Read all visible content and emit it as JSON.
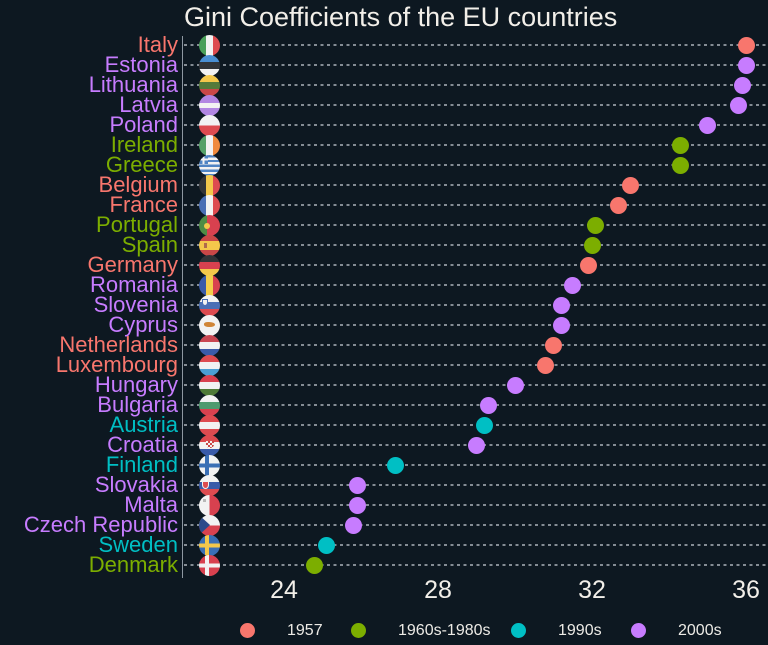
{
  "title": "Gini Coefficients of the EU countries",
  "colors": {
    "background": "#0d1821",
    "title_text": "#f2efe9",
    "tick_text": "#f2efe9",
    "legend_text": "#eceae5",
    "gridline": "#cdd4da",
    "axis_line": "#b9c3cd",
    "groups": {
      "1957": "#F8766D",
      "1960s-1980s": "#7CAE00",
      "1990s": "#00BFC4",
      "2000s": "#C77CFF"
    }
  },
  "legend": {
    "items": [
      {
        "label": "1957",
        "group": "1957",
        "color": "#F8766D"
      },
      {
        "label": "1960s-1980s",
        "group": "1960s-1980s",
        "color": "#7CAE00"
      },
      {
        "label": "1990s",
        "group": "1990s",
        "color": "#00BFC4"
      },
      {
        "label": "2000s",
        "group": "2000s",
        "color": "#C77CFF"
      }
    ]
  },
  "chart_data": {
    "type": "scatter",
    "variant": "horizontal-dot-plot",
    "title": "Gini Coefficients of the EU countries",
    "xlabel": "",
    "ylabel": "",
    "x_ticks": [
      24,
      28,
      32,
      36
    ],
    "xlim": [
      21.3,
      36.6
    ],
    "grid": "dashed-horizontal",
    "legend_position": "bottom",
    "group_meaning": "EU accession era",
    "points": [
      {
        "country": "Italy",
        "gini": 36.0,
        "group": "1957",
        "flag": "it"
      },
      {
        "country": "Estonia",
        "gini": 36.0,
        "group": "2000s",
        "flag": "ee"
      },
      {
        "country": "Lithuania",
        "gini": 35.9,
        "group": "2000s",
        "flag": "lt"
      },
      {
        "country": "Latvia",
        "gini": 35.8,
        "group": "2000s",
        "flag": "lv"
      },
      {
        "country": "Poland",
        "gini": 35.0,
        "group": "2000s",
        "flag": "pl"
      },
      {
        "country": "Ireland",
        "gini": 34.3,
        "group": "1960s-1980s",
        "flag": "ie"
      },
      {
        "country": "Greece",
        "gini": 34.3,
        "group": "1960s-1980s",
        "flag": "gr"
      },
      {
        "country": "Belgium",
        "gini": 33.0,
        "group": "1957",
        "flag": "be"
      },
      {
        "country": "France",
        "gini": 32.7,
        "group": "1957",
        "flag": "fr"
      },
      {
        "country": "Portugal",
        "gini": 32.1,
        "group": "1960s-1980s",
        "flag": "pt"
      },
      {
        "country": "Spain",
        "gini": 32.0,
        "group": "1960s-1980s",
        "flag": "es"
      },
      {
        "country": "Germany",
        "gini": 31.9,
        "group": "1957",
        "flag": "de"
      },
      {
        "country": "Romania",
        "gini": 31.5,
        "group": "2000s",
        "flag": "ro"
      },
      {
        "country": "Slovenia",
        "gini": 31.2,
        "group": "2000s",
        "flag": "si"
      },
      {
        "country": "Cyprus",
        "gini": 31.2,
        "group": "2000s",
        "flag": "cy"
      },
      {
        "country": "Netherlands",
        "gini": 31.0,
        "group": "1957",
        "flag": "nl"
      },
      {
        "country": "Luxembourg",
        "gini": 30.8,
        "group": "1957",
        "flag": "lu"
      },
      {
        "country": "Hungary",
        "gini": 30.0,
        "group": "2000s",
        "flag": "hu"
      },
      {
        "country": "Bulgaria",
        "gini": 29.3,
        "group": "2000s",
        "flag": "bg"
      },
      {
        "country": "Austria",
        "gini": 29.2,
        "group": "1990s",
        "flag": "at"
      },
      {
        "country": "Croatia",
        "gini": 29.0,
        "group": "2000s",
        "flag": "hr"
      },
      {
        "country": "Finland",
        "gini": 26.9,
        "group": "1990s",
        "flag": "fi"
      },
      {
        "country": "Slovakia",
        "gini": 25.9,
        "group": "2000s",
        "flag": "sk"
      },
      {
        "country": "Malta",
        "gini": 25.9,
        "group": "2000s",
        "flag": "mt"
      },
      {
        "country": "Czech Republic",
        "gini": 25.8,
        "group": "2000s",
        "flag": "cz"
      },
      {
        "country": "Sweden",
        "gini": 25.1,
        "group": "1990s",
        "flag": "se"
      },
      {
        "country": "Denmark",
        "gini": 24.8,
        "group": "1960s-1980s",
        "flag": "dk"
      }
    ]
  }
}
